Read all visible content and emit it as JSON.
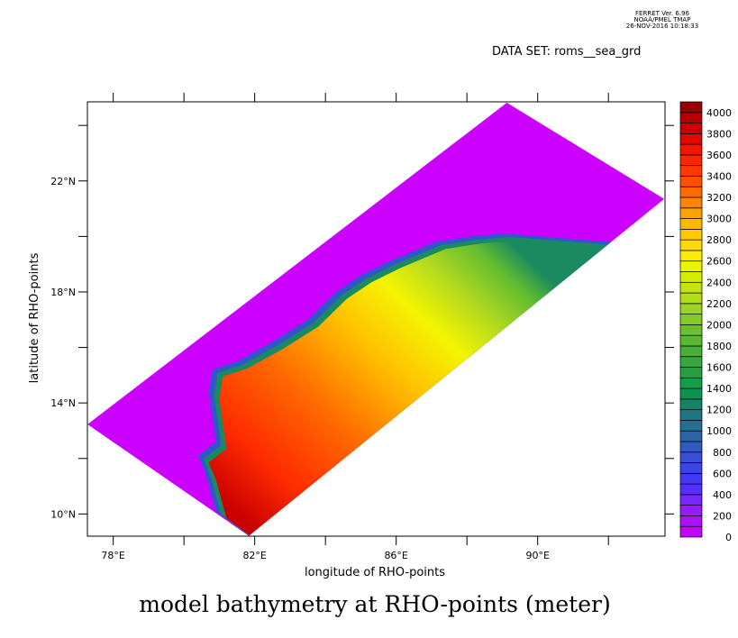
{
  "header": {
    "program": "FERRET Ver. 6.96",
    "org": "NOAA/PMEL TMAP",
    "timestamp": "26-NOV-2016 10:18:33",
    "dataset": "DATA SET: roms__sea_grd"
  },
  "chart_data": {
    "type": "heatmap",
    "title": "model bathymetry at RHO-points (meter)",
    "xlabel": "longitude of RHO-points",
    "ylabel": "latitude of RHO-points",
    "xlim": [
      77.27,
      93.6
    ],
    "ylim": [
      9.2,
      24.85
    ],
    "xticks": [
      78,
      80,
      82,
      84,
      86,
      88,
      90,
      92
    ],
    "xtick_labels": {
      "78": "78°E",
      "82": "82°E",
      "86": "86°E",
      "90": "90°E"
    },
    "yticks": [
      10,
      12,
      14,
      16,
      18,
      20,
      22,
      24
    ],
    "ytick_labels": {
      "10": "10°N",
      "14": "14°N",
      "18": "18°N",
      "22": "22°N"
    },
    "domain_corners_lonlat": [
      [
        77.27,
        13.23
      ],
      [
        89.13,
        24.82
      ],
      [
        93.58,
        21.35
      ],
      [
        81.83,
        9.21
      ]
    ],
    "shelf_edge_lonlat": [
      [
        81.83,
        9.21
      ],
      [
        80.9,
        10.1
      ],
      [
        80.6,
        11.5
      ],
      [
        80.4,
        12.1
      ],
      [
        80.9,
        12.6
      ],
      [
        80.7,
        14.4
      ],
      [
        80.8,
        15.2
      ],
      [
        81.5,
        15.5
      ],
      [
        82.5,
        16.2
      ],
      [
        83.5,
        17.0
      ],
      [
        84.3,
        18.0
      ],
      [
        85.0,
        18.6
      ],
      [
        85.8,
        19.1
      ],
      [
        87.1,
        19.8
      ],
      [
        88.1,
        20.0
      ],
      [
        89.1,
        20.1
      ],
      [
        90.1,
        20.0
      ],
      [
        92.1,
        19.8
      ]
    ],
    "colorbar": {
      "levels_step": 100,
      "min": 0,
      "max": 4100,
      "labels": [
        0,
        200,
        400,
        600,
        800,
        1000,
        1200,
        1400,
        1600,
        1800,
        2000,
        2200,
        2400,
        2600,
        2800,
        3000,
        3200,
        3400,
        3600,
        3800,
        4000
      ],
      "color_stops": [
        [
          0,
          "#cc00ff"
        ],
        [
          300,
          "#8a22ff"
        ],
        [
          500,
          "#4433ff"
        ],
        [
          800,
          "#3355cc"
        ],
        [
          1000,
          "#2a6a9a"
        ],
        [
          1200,
          "#1a7a7a"
        ],
        [
          1300,
          "#0f8a5a"
        ],
        [
          1400,
          "#0a9a4a"
        ],
        [
          1600,
          "#30a040"
        ],
        [
          1900,
          "#60bb30"
        ],
        [
          2200,
          "#a8d820"
        ],
        [
          2500,
          "#e0f000"
        ],
        [
          2600,
          "#f8f800"
        ],
        [
          2800,
          "#ffd000"
        ],
        [
          3000,
          "#ffb000"
        ],
        [
          3200,
          "#ff7700"
        ],
        [
          3400,
          "#ff4400"
        ],
        [
          3600,
          "#ff1a00"
        ],
        [
          3800,
          "#d80000"
        ],
        [
          4000,
          "#a80000"
        ],
        [
          4100,
          "#8a0000"
        ]
      ]
    }
  }
}
